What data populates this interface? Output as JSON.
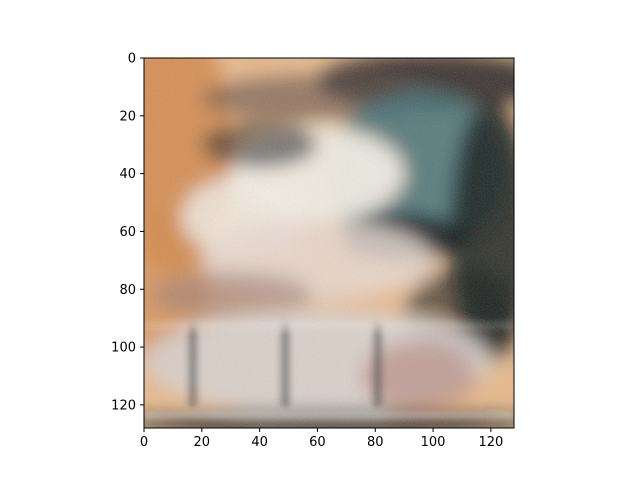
{
  "chart_data": {
    "type": "heatmap",
    "title": "",
    "xlabel": "",
    "ylabel": "",
    "xlim": [
      0,
      128
    ],
    "ylim": [
      128,
      0
    ],
    "y_axis_inverted": true,
    "x_ticks": [
      0,
      20,
      40,
      60,
      80,
      100,
      120
    ],
    "y_ticks": [
      0,
      20,
      40,
      60,
      80,
      100,
      120
    ],
    "image_size": [
      128,
      128
    ],
    "grid": false,
    "legend": "none",
    "colors": {
      "sky_warm": "#e9b98a",
      "sky_orange": "#d48a4c",
      "cloud_white": "#f4efe6",
      "dark_cloud": "#101418",
      "teal_cloud": "#3c6e78",
      "ground_light": "#d9d4d2",
      "column_dark": "#2a2628"
    }
  },
  "x_tick_labels": [
    "0",
    "20",
    "40",
    "60",
    "80",
    "100",
    "120"
  ],
  "y_tick_labels": [
    "0",
    "20",
    "40",
    "60",
    "80",
    "100",
    "120"
  ]
}
